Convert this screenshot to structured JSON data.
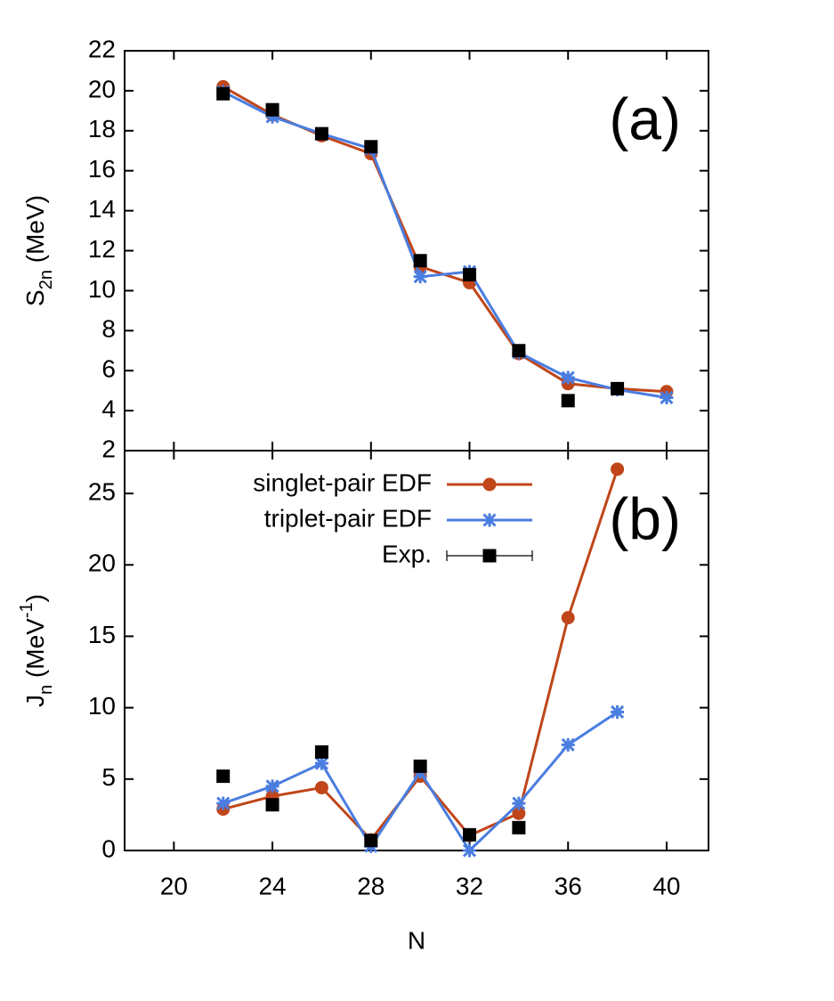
{
  "chart_data": [
    {
      "type": "line",
      "annotation": "(a)",
      "ylabel": [
        {
          "text": "S"
        },
        {
          "text": "2n",
          "shift": "sub"
        },
        {
          "text": " (MeV)"
        }
      ],
      "x": [
        22,
        24,
        26,
        28,
        30,
        32,
        34,
        36,
        38,
        40
      ],
      "xlim": [
        18,
        41.7
      ],
      "xticks": [
        20,
        24,
        28,
        32,
        36,
        40
      ],
      "show_xtick_labels": false,
      "ylim": [
        2,
        22
      ],
      "yticks": [
        2,
        4,
        6,
        8,
        10,
        12,
        14,
        16,
        18,
        20,
        22
      ],
      "series": [
        {
          "name": "singlet-pair EDF",
          "color": "#c0461a",
          "marker": "circle",
          "lines": true,
          "values": [
            20.2,
            18.8,
            17.75,
            16.85,
            11.2,
            10.4,
            6.85,
            5.35,
            5.1,
            4.95
          ]
        },
        {
          "name": "triplet-pair EDF",
          "color": "#4a7de0",
          "marker": "star",
          "lines": true,
          "values": [
            19.95,
            18.7,
            17.85,
            17.1,
            10.7,
            10.95,
            6.9,
            5.65,
            5.05,
            4.65
          ]
        },
        {
          "name": "Exp.",
          "color": "#000000",
          "marker": "square",
          "lines": false,
          "values": [
            19.85,
            19.05,
            17.85,
            17.2,
            11.5,
            10.8,
            7.0,
            4.5,
            5.1,
            null
          ]
        }
      ]
    },
    {
      "type": "line",
      "annotation": "(b)",
      "xlabel": "N",
      "legend": "top",
      "ylabel": [
        {
          "text": "J"
        },
        {
          "text": "n",
          "shift": "sub"
        },
        {
          "text": " (MeV"
        },
        {
          "text": "-1",
          "shift": "super"
        },
        {
          "text": ")"
        }
      ],
      "x": [
        22,
        24,
        26,
        28,
        30,
        32,
        34,
        36,
        38
      ],
      "xlim": [
        18,
        41.7
      ],
      "xticks": [
        20,
        24,
        28,
        32,
        36,
        40
      ],
      "show_xtick_labels": true,
      "ylim": [
        0,
        28
      ],
      "yticks": [
        0,
        5,
        10,
        15,
        20,
        25
      ],
      "series": [
        {
          "name": "singlet-pair EDF",
          "color": "#c0461a",
          "marker": "circle",
          "lines": true,
          "values": [
            2.9,
            3.8,
            4.4,
            0.75,
            5.2,
            1.05,
            2.6,
            16.3,
            26.7
          ]
        },
        {
          "name": "triplet-pair EDF",
          "color": "#4a7de0",
          "marker": "star",
          "lines": true,
          "values": [
            3.3,
            4.5,
            6.1,
            0.3,
            5.5,
            0,
            3.3,
            7.4,
            9.7
          ]
        },
        {
          "name": "Exp.",
          "color": "#000000",
          "marker": "square",
          "lines": false,
          "errorbars": true,
          "values": [
            5.2,
            3.2,
            6.9,
            0.7,
            5.9,
            1.1,
            1.6,
            null,
            null
          ]
        }
      ]
    }
  ]
}
